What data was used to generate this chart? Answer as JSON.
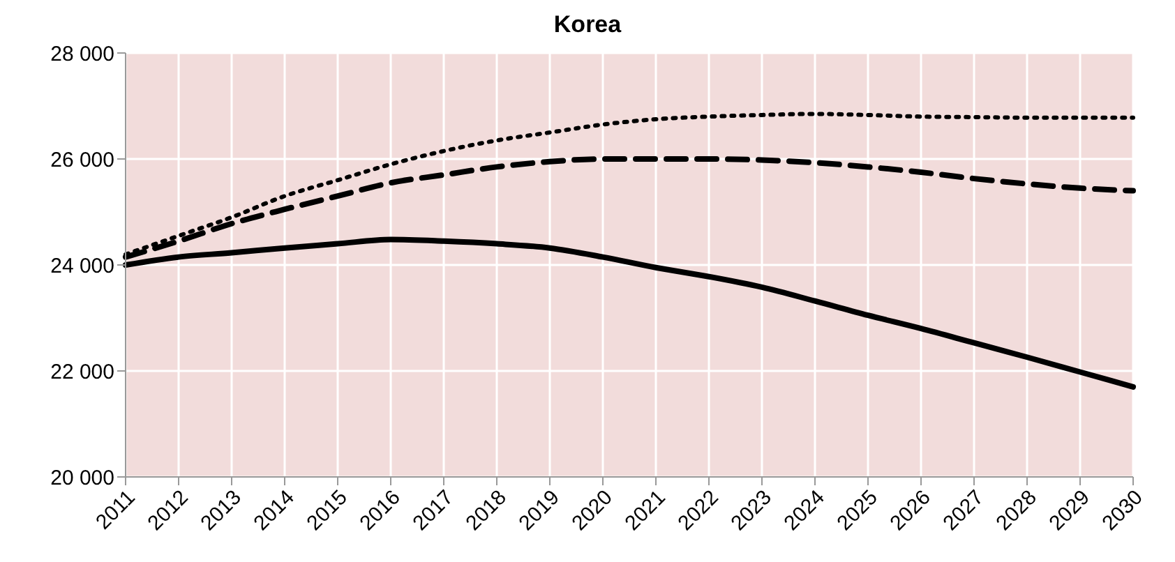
{
  "chart_data": {
    "type": "line",
    "title": "Korea",
    "categories": [
      "2011",
      "2012",
      "2013",
      "2014",
      "2015",
      "2016",
      "2017",
      "2018",
      "2019",
      "2020",
      "2021",
      "2022",
      "2023",
      "2024",
      "2025",
      "2026",
      "2027",
      "2028",
      "2029",
      "2030"
    ],
    "series": [
      {
        "color": "#000000",
        "line_style": "solid",
        "values": [
          24000,
          24150,
          24230,
          24320,
          24400,
          24480,
          24450,
          24400,
          24320,
          24150,
          23950,
          23780,
          23580,
          23320,
          23050,
          22800,
          22530,
          22260,
          21980,
          21700
        ]
      },
      {
        "color": "#000000",
        "line_style": "dashed",
        "values": [
          24150,
          24450,
          24780,
          25050,
          25300,
          25550,
          25700,
          25850,
          25950,
          26000,
          26000,
          26000,
          25980,
          25930,
          25850,
          25750,
          25630,
          25530,
          25450,
          25400
        ]
      },
      {
        "color": "#000000",
        "line_style": "dotted",
        "values": [
          24200,
          24550,
          24900,
          25300,
          25600,
          25900,
          26150,
          26350,
          26500,
          26650,
          26750,
          26800,
          26830,
          26850,
          26830,
          26800,
          26790,
          26780,
          26780,
          26780
        ]
      }
    ],
    "ylim": [
      20000,
      28000
    ],
    "yticks": [
      {
        "value": 20000,
        "label": "20 000"
      },
      {
        "value": 22000,
        "label": "22 000"
      },
      {
        "value": 24000,
        "label": "24 000"
      },
      {
        "value": 26000,
        "label": "26 000"
      },
      {
        "value": 28000,
        "label": "28 000"
      }
    ],
    "grid": true,
    "marker": "none"
  }
}
